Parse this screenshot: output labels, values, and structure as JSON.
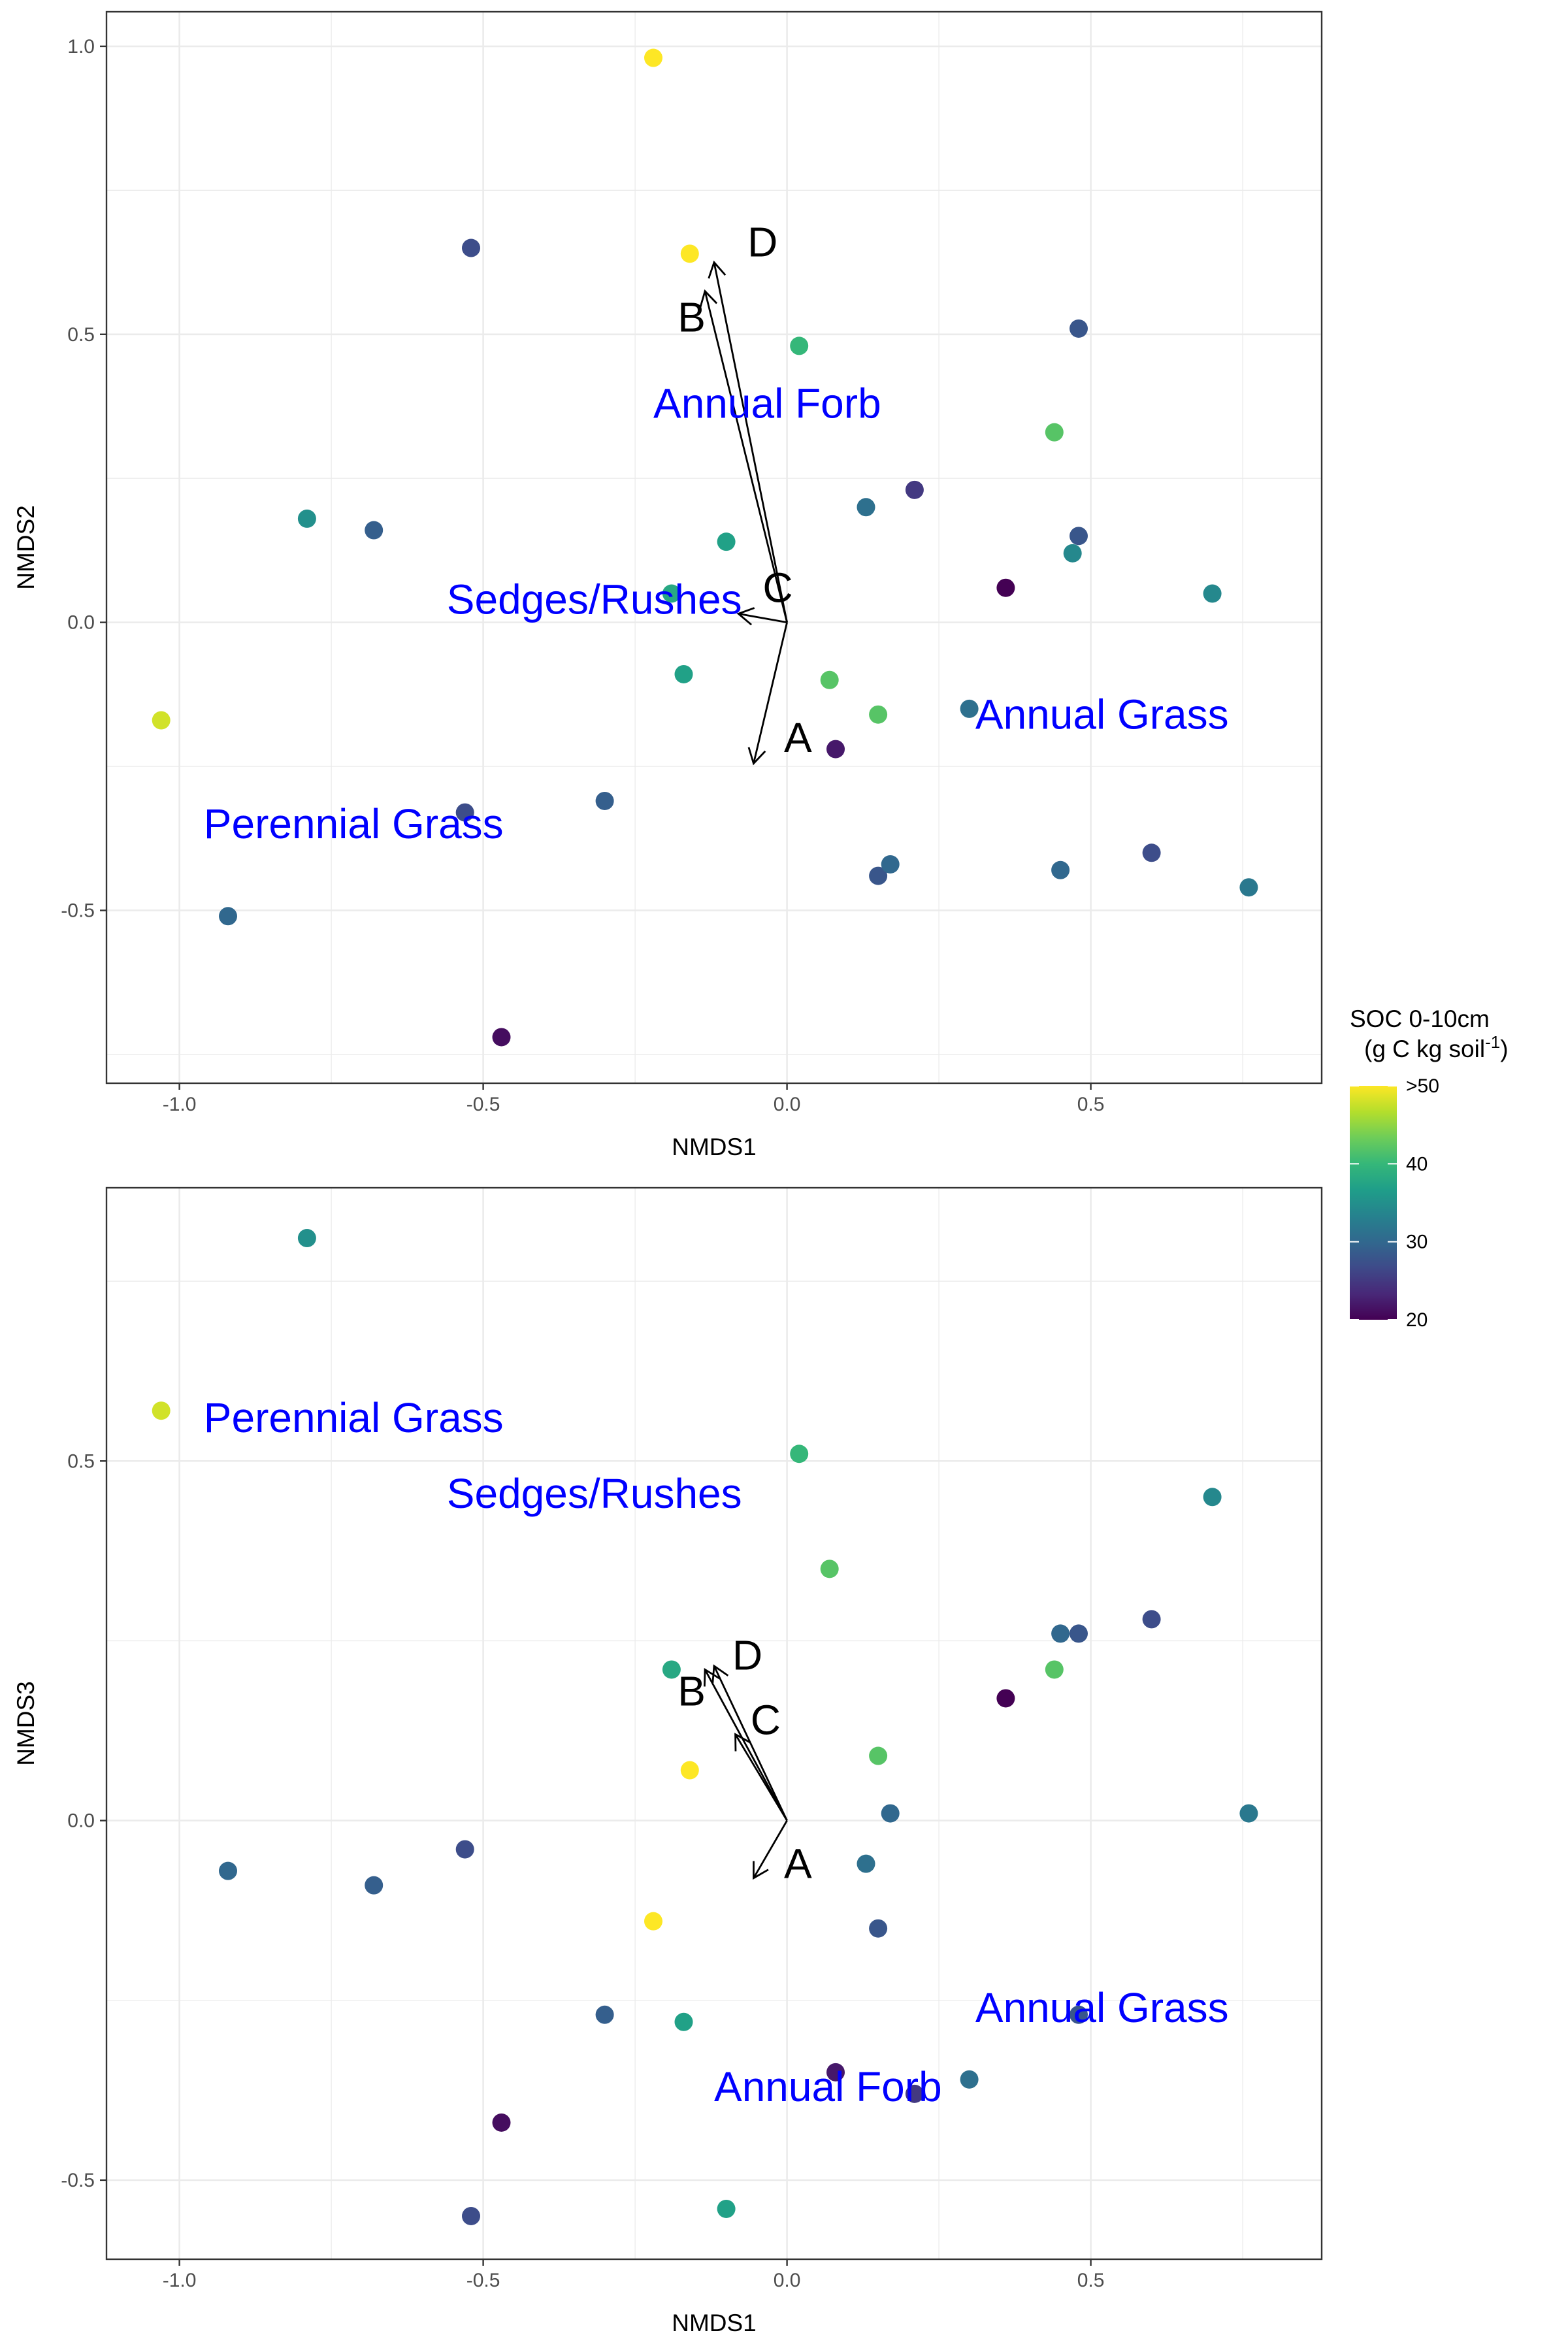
{
  "colors": {
    "species_label": "#0000FF",
    "vector": "#000000",
    "grid": "#EBEBEB",
    "panel_border": "#333333",
    "viridis": [
      "#440154",
      "#482878",
      "#3E4A89",
      "#31688E",
      "#26828E",
      "#1F9E89",
      "#35B779",
      "#6DCD59",
      "#B4DE2C",
      "#FDE725"
    ]
  },
  "legend": {
    "title_line1": "SOC 0-10cm",
    "title_line2_prefix": "(g C kg soil",
    "title_line2_sup": "-1",
    "title_line2_suffix": ")",
    "ticks": [
      {
        "value": 50,
        "label": ">50"
      },
      {
        "value": 40,
        "label": "40"
      },
      {
        "value": 30,
        "label": "30"
      },
      {
        "value": 20,
        "label": "20"
      }
    ],
    "range": [
      20,
      50
    ]
  },
  "chart_data": [
    {
      "type": "scatter",
      "title": "",
      "xlabel": "NMDS1",
      "ylabel": "NMDS2",
      "xlim": [
        -1.12,
        0.88
      ],
      "ylim": [
        -0.8,
        1.06
      ],
      "xticks": [
        -1.0,
        -0.5,
        0.0,
        0.5
      ],
      "xtick_labels": [
        "-1.0",
        "-0.5",
        "0.0",
        "0.5"
      ],
      "yticks": [
        -0.5,
        0.0,
        0.5,
        1.0
      ],
      "ytick_labels": [
        "-0.5",
        "0.0",
        "0.5",
        "1.0"
      ],
      "grid": true,
      "points": [
        {
          "x": -0.22,
          "y": 0.98,
          "soc": 50
        },
        {
          "x": -0.52,
          "y": 0.65,
          "soc": 27
        },
        {
          "x": -0.16,
          "y": 0.64,
          "soc": 50
        },
        {
          "x": 0.02,
          "y": 0.48,
          "soc": 40
        },
        {
          "x": 0.48,
          "y": 0.51,
          "soc": 28
        },
        {
          "x": 0.44,
          "y": 0.33,
          "soc": 42
        },
        {
          "x": -0.79,
          "y": 0.18,
          "soc": 35
        },
        {
          "x": -0.68,
          "y": 0.16,
          "soc": 29
        },
        {
          "x": 0.13,
          "y": 0.2,
          "soc": 31
        },
        {
          "x": 0.21,
          "y": 0.23,
          "soc": 25
        },
        {
          "x": 0.48,
          "y": 0.15,
          "soc": 28
        },
        {
          "x": 0.47,
          "y": 0.12,
          "soc": 34
        },
        {
          "x": -0.1,
          "y": 0.14,
          "soc": 37
        },
        {
          "x": 0.36,
          "y": 0.06,
          "soc": 20
        },
        {
          "x": 0.7,
          "y": 0.05,
          "soc": 34
        },
        {
          "x": -0.19,
          "y": 0.05,
          "soc": 38
        },
        {
          "x": -0.17,
          "y": -0.09,
          "soc": 37
        },
        {
          "x": 0.07,
          "y": -0.1,
          "soc": 42
        },
        {
          "x": 0.15,
          "y": -0.16,
          "soc": 42
        },
        {
          "x": 0.3,
          "y": -0.15,
          "soc": 31
        },
        {
          "x": 0.08,
          "y": -0.22,
          "soc": 22
        },
        {
          "x": -1.03,
          "y": -0.17,
          "soc": 48
        },
        {
          "x": -0.53,
          "y": -0.33,
          "soc": 27
        },
        {
          "x": -0.3,
          "y": -0.31,
          "soc": 29
        },
        {
          "x": 0.15,
          "y": -0.44,
          "soc": 28
        },
        {
          "x": 0.17,
          "y": -0.42,
          "soc": 30
        },
        {
          "x": 0.45,
          "y": -0.43,
          "soc": 30
        },
        {
          "x": 0.6,
          "y": -0.4,
          "soc": 27
        },
        {
          "x": 0.76,
          "y": -0.46,
          "soc": 32
        },
        {
          "x": -0.92,
          "y": -0.51,
          "soc": 30
        },
        {
          "x": -0.47,
          "y": -0.72,
          "soc": 21
        }
      ],
      "vectors": [
        {
          "label": "A",
          "x": -0.055,
          "y": -0.245,
          "lx": -0.005,
          "ly": -0.2
        },
        {
          "label": "B",
          "x": -0.135,
          "y": 0.575,
          "lx": -0.18,
          "ly": 0.53
        },
        {
          "label": "C",
          "x": -0.08,
          "y": 0.015,
          "lx": -0.04,
          "ly": 0.06
        },
        {
          "label": "D",
          "x": -0.12,
          "y": 0.625,
          "lx": -0.065,
          "ly": 0.66
        }
      ],
      "species_labels": [
        {
          "label": "Annual Forb",
          "x": -0.22,
          "y": 0.38
        },
        {
          "label": "Sedges/Rushes",
          "x": -0.56,
          "y": 0.04
        },
        {
          "label": "Annual Grass",
          "x": 0.31,
          "y": -0.16
        },
        {
          "label": "Perennial Grass",
          "x": -0.96,
          "y": -0.35
        }
      ]
    },
    {
      "type": "scatter",
      "title": "",
      "xlabel": "NMDS1",
      "ylabel": "NMDS3",
      "xlim": [
        -1.12,
        0.88
      ],
      "ylim": [
        -0.61,
        0.88
      ],
      "xticks": [
        -1.0,
        -0.5,
        0.0,
        0.5
      ],
      "xtick_labels": [
        "-1.0",
        "-0.5",
        "0.0",
        "0.5"
      ],
      "yticks": [
        -0.5,
        0.0,
        0.5
      ],
      "ytick_labels": [
        "-0.5",
        "0.0",
        "0.5"
      ],
      "grid": true,
      "points": [
        {
          "x": -0.79,
          "y": 0.81,
          "soc": 35
        },
        {
          "x": -1.03,
          "y": 0.57,
          "soc": 48
        },
        {
          "x": 0.02,
          "y": 0.51,
          "soc": 40
        },
        {
          "x": 0.7,
          "y": 0.45,
          "soc": 34
        },
        {
          "x": 0.07,
          "y": 0.35,
          "soc": 42
        },
        {
          "x": 0.45,
          "y": 0.26,
          "soc": 30
        },
        {
          "x": 0.48,
          "y": 0.26,
          "soc": 28
        },
        {
          "x": 0.6,
          "y": 0.28,
          "soc": 27
        },
        {
          "x": 0.44,
          "y": 0.21,
          "soc": 42
        },
        {
          "x": -0.19,
          "y": 0.21,
          "soc": 38
        },
        {
          "x": 0.36,
          "y": 0.17,
          "soc": 20
        },
        {
          "x": 0.15,
          "y": 0.09,
          "soc": 42
        },
        {
          "x": -0.16,
          "y": 0.07,
          "soc": 50
        },
        {
          "x": 0.17,
          "y": 0.01,
          "soc": 30
        },
        {
          "x": 0.76,
          "y": 0.01,
          "soc": 32
        },
        {
          "x": 0.13,
          "y": -0.06,
          "soc": 31
        },
        {
          "x": -0.53,
          "y": -0.04,
          "soc": 27
        },
        {
          "x": -0.92,
          "y": -0.07,
          "soc": 30
        },
        {
          "x": -0.68,
          "y": -0.09,
          "soc": 29
        },
        {
          "x": 0.15,
          "y": -0.15,
          "soc": 28
        },
        {
          "x": -0.22,
          "y": -0.14,
          "soc": 50
        },
        {
          "x": -0.3,
          "y": -0.27,
          "soc": 29
        },
        {
          "x": -0.17,
          "y": -0.28,
          "soc": 37
        },
        {
          "x": 0.48,
          "y": -0.27,
          "soc": 28
        },
        {
          "x": 0.08,
          "y": -0.35,
          "soc": 22
        },
        {
          "x": 0.3,
          "y": -0.36,
          "soc": 31
        },
        {
          "x": 0.21,
          "y": -0.38,
          "soc": 25
        },
        {
          "x": -0.47,
          "y": -0.42,
          "soc": 21
        },
        {
          "x": -0.1,
          "y": -0.54,
          "soc": 37
        },
        {
          "x": -0.52,
          "y": -0.55,
          "soc": 27
        }
      ],
      "vectors": [
        {
          "label": "A",
          "x": -0.055,
          "y": -0.08,
          "lx": -0.005,
          "ly": -0.06
        },
        {
          "label": "B",
          "x": -0.135,
          "y": 0.21,
          "lx": -0.18,
          "ly": 0.18
        },
        {
          "label": "C",
          "x": -0.085,
          "y": 0.12,
          "lx": -0.06,
          "ly": 0.14
        },
        {
          "label": "D",
          "x": -0.12,
          "y": 0.215,
          "lx": -0.09,
          "ly": 0.23
        }
      ],
      "species_labels": [
        {
          "label": "Perennial Grass",
          "x": -0.96,
          "y": 0.56
        },
        {
          "label": "Sedges/Rushes",
          "x": -0.56,
          "y": 0.455
        },
        {
          "label": "Annual Grass",
          "x": 0.31,
          "y": -0.26
        },
        {
          "label": "Annual Forb",
          "x": -0.12,
          "y": -0.37
        }
      ]
    }
  ]
}
